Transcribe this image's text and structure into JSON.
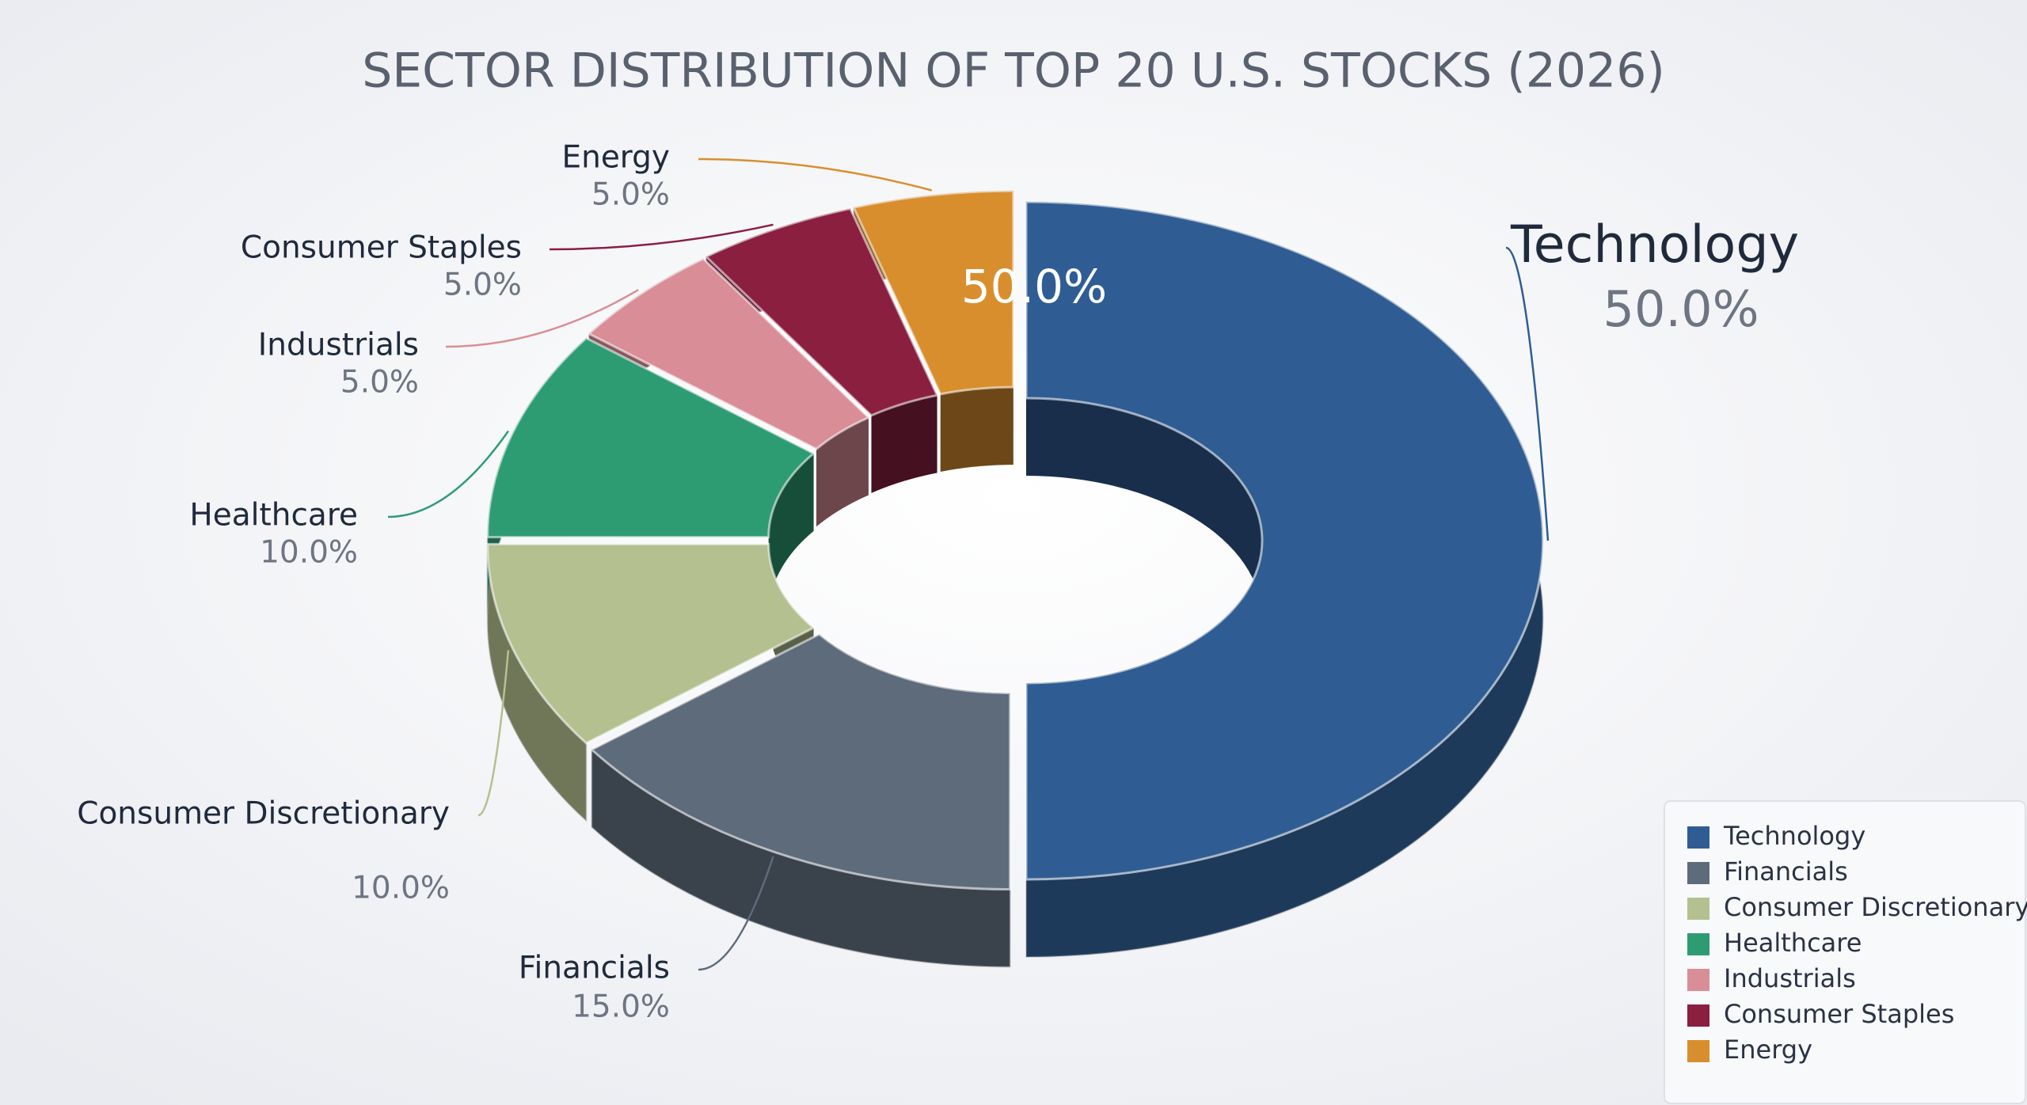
{
  "chart_data": {
    "type": "donut",
    "title": "SECTOR DISTRIBUTION OF TOP 20 U.S. STOCKS (2026)",
    "categories": [
      "Technology",
      "Financials",
      "Consumer Discretionary",
      "Healthcare",
      "Industrials",
      "Consumer Staples",
      "Energy"
    ],
    "values": [
      50,
      15,
      10,
      10,
      5,
      5,
      5
    ],
    "value_labels": [
      "50.0%",
      "15.0%",
      "10.0%",
      "10.0%",
      "5.0%",
      "5.0%",
      "5.0%"
    ],
    "colors": [
      "#2f5d93",
      "#5d6b7b",
      "#b4c08f",
      "#2e9c73",
      "#d98d96",
      "#8a1f40",
      "#d98e2e"
    ],
    "legend": "bottom-right"
  }
}
